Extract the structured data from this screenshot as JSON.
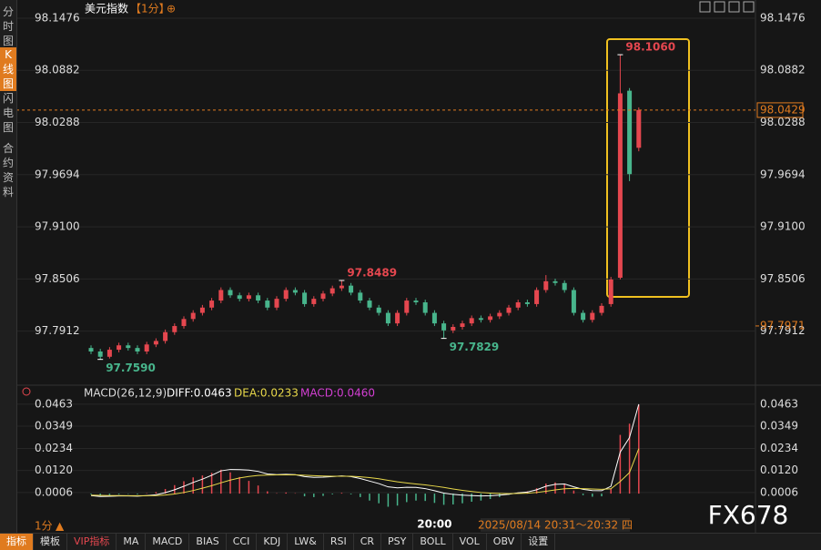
{
  "sidebar": {
    "tabs": [
      "分时图",
      "K线图",
      "闪电图",
      "合约资料"
    ]
  },
  "header": {
    "title": "美元指数",
    "period": "【1分】"
  },
  "chart_data": [
    {
      "type": "candlestick",
      "categories": [
        null,
        null,
        null,
        null,
        null,
        null,
        null,
        null,
        null,
        null,
        null,
        null,
        null,
        null,
        null,
        null,
        null,
        null,
        null,
        null,
        null,
        null,
        null,
        null,
        null,
        null,
        null,
        null,
        null,
        null,
        null,
        null,
        null,
        null,
        null,
        null,
        null,
        "20:00",
        null,
        null,
        null,
        null,
        null,
        null,
        null,
        null,
        null,
        null,
        null,
        null,
        null,
        null,
        null,
        null,
        null,
        null,
        null,
        null,
        null,
        null
      ],
      "open": [
        97.772,
        97.768,
        97.762,
        97.77,
        97.775,
        97.772,
        97.768,
        97.776,
        97.78,
        97.79,
        97.797,
        97.805,
        97.812,
        97.818,
        97.826,
        97.838,
        97.832,
        97.828,
        97.832,
        97.826,
        97.818,
        97.828,
        97.838,
        97.835,
        97.822,
        97.828,
        97.834,
        97.84,
        97.843,
        97.835,
        97.826,
        97.818,
        97.812,
        97.8,
        97.812,
        97.826,
        97.824,
        97.812,
        97.8,
        97.792,
        97.796,
        97.8,
        97.806,
        97.804,
        97.808,
        97.812,
        97.818,
        97.824,
        97.822,
        97.838,
        97.848,
        97.846,
        97.838,
        97.812,
        97.804,
        97.812,
        97.822,
        97.852,
        98.065,
        98.0
      ],
      "high": [
        97.775,
        97.771,
        97.773,
        97.778,
        97.778,
        97.775,
        97.779,
        97.783,
        97.793,
        97.8,
        97.808,
        97.815,
        97.821,
        97.829,
        97.841,
        97.841,
        97.835,
        97.835,
        97.835,
        97.829,
        97.831,
        97.841,
        97.841,
        97.838,
        97.831,
        97.837,
        97.843,
        97.8489,
        97.846,
        97.838,
        97.829,
        97.821,
        97.815,
        97.815,
        97.829,
        97.829,
        97.827,
        97.815,
        97.803,
        97.799,
        97.803,
        97.809,
        97.809,
        97.811,
        97.815,
        97.821,
        97.827,
        97.827,
        97.841,
        97.855,
        97.851,
        97.849,
        97.841,
        97.815,
        97.815,
        97.823,
        97.853,
        98.106,
        98.068,
        98.046
      ],
      "low": [
        97.765,
        97.759,
        97.76,
        97.767,
        97.769,
        97.765,
        97.765,
        97.773,
        97.777,
        97.787,
        97.794,
        97.802,
        97.809,
        97.815,
        97.823,
        97.829,
        97.825,
        97.825,
        97.823,
        97.815,
        97.815,
        97.825,
        97.832,
        97.819,
        97.819,
        97.825,
        97.831,
        97.837,
        97.832,
        97.823,
        97.815,
        97.809,
        97.797,
        97.797,
        97.809,
        97.821,
        97.809,
        97.797,
        97.7829,
        97.789,
        97.793,
        97.797,
        97.801,
        97.801,
        97.805,
        97.809,
        97.815,
        97.819,
        97.819,
        97.835,
        97.843,
        97.835,
        97.809,
        97.801,
        97.801,
        97.809,
        97.819,
        97.85,
        97.962,
        97.996
      ],
      "close": [
        97.768,
        97.762,
        97.77,
        97.775,
        97.772,
        97.768,
        97.776,
        97.78,
        97.79,
        97.797,
        97.805,
        97.812,
        97.818,
        97.826,
        97.838,
        97.832,
        97.828,
        97.832,
        97.826,
        97.818,
        97.828,
        97.838,
        97.835,
        97.822,
        97.828,
        97.834,
        97.84,
        97.843,
        97.835,
        97.826,
        97.818,
        97.812,
        97.8,
        97.812,
        97.826,
        97.824,
        97.812,
        97.8,
        97.792,
        97.796,
        97.8,
        97.806,
        97.804,
        97.808,
        97.812,
        97.818,
        97.824,
        97.822,
        97.838,
        97.848,
        97.846,
        97.838,
        97.812,
        97.804,
        97.812,
        97.82,
        97.85,
        98.062,
        97.97,
        98.043
      ],
      "up_color": "#e5474f",
      "down_color": "#48b58c",
      "ylim": [
        97.74,
        98.16
      ],
      "yticks": [
        98.1476,
        98.0882,
        98.0288,
        97.9694,
        {
          "value": 97.91,
          "label": "97.9100"
        },
        97.8506,
        97.7912
      ],
      "annotations": [
        {
          "value": 98.106,
          "label": "98.1060"
        },
        {
          "value": 97.8489,
          "label": "97.8489"
        },
        {
          "value": 97.7829,
          "label": "97.7829"
        },
        {
          "value": 97.759,
          "label": "97.7590"
        }
      ],
      "last_price": {
        "value": 98.0429,
        "label": "98.0429"
      },
      "ref_price": {
        "value": 97.7971,
        "label": "97.7971"
      },
      "grid": true
    },
    {
      "type": "macd",
      "title": "MACD(26,12,9)",
      "series": [
        {
          "name": "DIFF:0.0463",
          "color": "#ffffff",
          "kind": "line",
          "values": [
            -0.001,
            -0.0015,
            -0.0014,
            -0.0012,
            -0.0012,
            -0.0013,
            -0.001,
            -0.0006,
            0.0005,
            0.002,
            0.0038,
            0.0058,
            0.0075,
            0.0095,
            0.0118,
            0.0125,
            0.0124,
            0.0122,
            0.0115,
            0.0102,
            0.0098,
            0.01,
            0.0098,
            0.0088,
            0.0084,
            0.0085,
            0.0088,
            0.0092,
            0.0088,
            0.0078,
            0.0065,
            0.0052,
            0.0035,
            0.003,
            0.0033,
            0.0032,
            0.0026,
            0.0015,
            0.0003,
            -0.0004,
            -0.0008,
            -0.001,
            -0.0012,
            -0.0011,
            -0.0008,
            -0.0003,
            0.0004,
            0.0008,
            0.002,
            0.0038,
            0.0048,
            0.005,
            0.0035,
            0.0022,
            0.0016,
            0.0015,
            0.0038,
            0.0215,
            0.029,
            0.0463
          ]
        },
        {
          "name": "DEA:0.0233",
          "color": "#e8d84a",
          "kind": "line",
          "values": [
            -0.0008,
            -0.0009,
            -0.001,
            -0.001,
            -0.0011,
            -0.0011,
            -0.0011,
            -0.001,
            -0.0007,
            -0.0002,
            0.0006,
            0.0016,
            0.0028,
            0.0041,
            0.0056,
            0.007,
            0.0081,
            0.0089,
            0.0094,
            0.0096,
            0.0097,
            0.0097,
            0.0097,
            0.0095,
            0.0093,
            0.0091,
            0.009,
            0.009,
            0.009,
            0.0087,
            0.0083,
            0.0077,
            0.0069,
            0.0061,
            0.0055,
            0.005,
            0.0045,
            0.0039,
            0.0032,
            0.0024,
            0.0017,
            0.0011,
            0.0006,
            0.0003,
            0.0001,
            0.0,
            0.0001,
            0.0002,
            0.0006,
            0.0012,
            0.0019,
            0.0025,
            0.0027,
            0.0026,
            0.0024,
            0.0022,
            0.0025,
            0.0063,
            0.0109,
            0.0233
          ]
        },
        {
          "name": "MACD:0.0460",
          "color": "#d33fd3",
          "kind": "bar",
          "up_color": "#e5474f",
          "down_color": "#48b58c",
          "values": [
            -0.0004,
            -0.0012,
            -0.0008,
            -0.0004,
            -0.0002,
            -0.0004,
            0.0002,
            0.0008,
            0.0024,
            0.0044,
            0.0064,
            0.0084,
            0.0094,
            0.0108,
            0.0124,
            0.011,
            0.0086,
            0.0066,
            0.0042,
            0.0012,
            0.0002,
            0.0006,
            0.0002,
            -0.0014,
            -0.0018,
            -0.0012,
            -0.0004,
            0.0004,
            -0.0004,
            -0.0018,
            -0.0036,
            -0.005,
            -0.0068,
            -0.0062,
            -0.0044,
            -0.0036,
            -0.0038,
            -0.0048,
            -0.0058,
            -0.0056,
            -0.005,
            -0.0042,
            -0.0036,
            -0.0028,
            -0.0018,
            -0.0006,
            0.0006,
            0.0012,
            0.0028,
            0.0052,
            0.0058,
            0.005,
            0.0016,
            -0.0008,
            -0.0016,
            -0.0014,
            0.0026,
            0.0304,
            0.0362,
            0.046
          ]
        }
      ],
      "ylim": [
        -0.0075,
        0.05
      ],
      "yticks": [
        0.0463,
        0.0349,
        0.0234,
        {
          "value": 0.012,
          "label": "0.0120"
        },
        0.0006
      ]
    }
  ],
  "footer": {
    "period": "1分",
    "time_range": "2025/08/14 20:31～20:32 四",
    "watermark": "FX678",
    "toolbar": [
      "指标",
      "模板",
      "VIP指标",
      "MA",
      "MACD",
      "BIAS",
      "CCI",
      "KDJ",
      "LW&",
      "RSI",
      "CR",
      "PSY",
      "BOLL",
      "VOL",
      "OBV",
      "设置"
    ]
  }
}
